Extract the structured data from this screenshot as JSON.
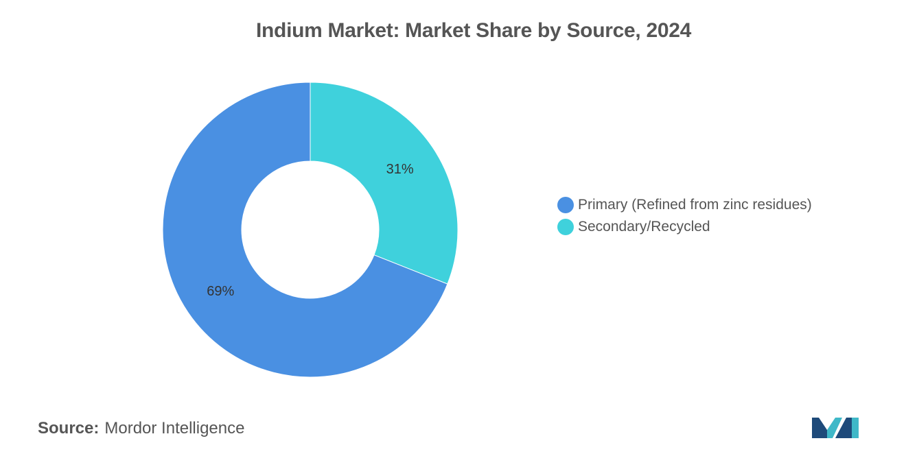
{
  "chart_data": {
    "type": "pie",
    "donut": true,
    "title": "Indium Market: Market Share by Source, 2024",
    "slices": [
      {
        "label": "Primary (Refined from zinc residues)",
        "value": 69,
        "display": "69%",
        "color": "#4A90E2"
      },
      {
        "label": "Secondary/Recycled",
        "value": 31,
        "display": "31%",
        "color": "#3FD1DC"
      }
    ],
    "legend_placement": "right"
  },
  "source": {
    "label": "Source:",
    "text": "Mordor Intelligence"
  },
  "logo": {
    "icon": "mordor-intelligence-logo",
    "colors": [
      "#1E4A7A",
      "#3FB8C8"
    ]
  }
}
